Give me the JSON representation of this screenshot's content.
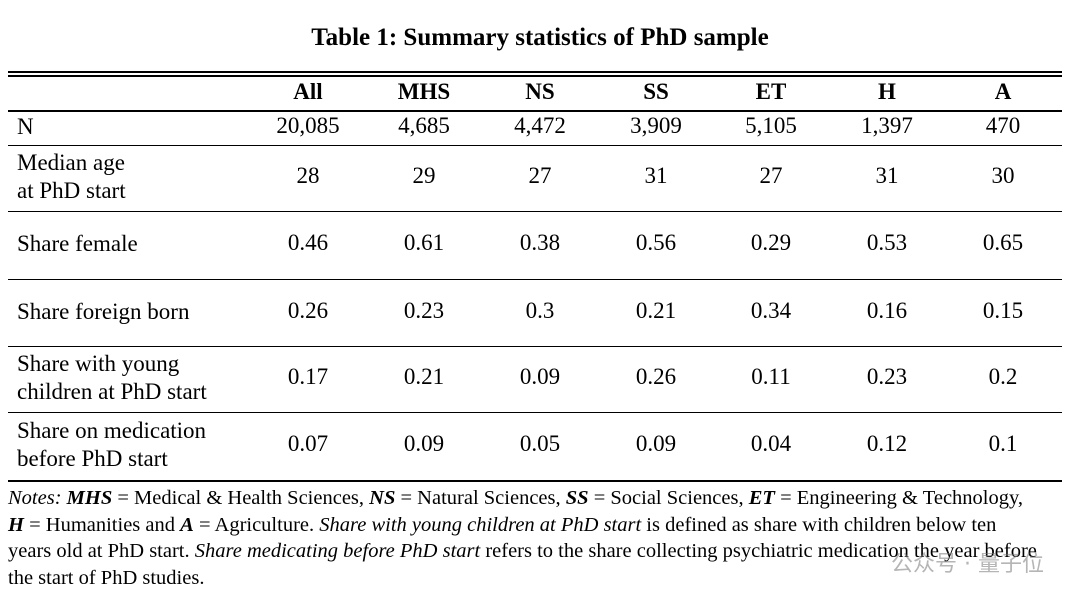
{
  "title": "Table 1: Summary statistics of PhD sample",
  "table": {
    "columns": [
      "All",
      "MHS",
      "NS",
      "SS",
      "ET",
      "H",
      "A"
    ],
    "rows": [
      {
        "label": [
          "N"
        ],
        "values": [
          "20,085",
          "4,685",
          "4,472",
          "3,909",
          "5,105",
          "1,397",
          "470"
        ]
      },
      {
        "label": [
          "Median age",
          "at PhD start"
        ],
        "values": [
          "28",
          "29",
          "27",
          "31",
          "27",
          "31",
          "30"
        ]
      },
      {
        "label": [
          "Share female"
        ],
        "values": [
          "0.46",
          "0.61",
          "0.38",
          "0.56",
          "0.29",
          "0.53",
          "0.65"
        ]
      },
      {
        "label": [
          "Share foreign born"
        ],
        "values": [
          "0.26",
          "0.23",
          "0.3",
          "0.21",
          "0.34",
          "0.16",
          "0.15"
        ]
      },
      {
        "label": [
          "Share with young",
          "children at PhD start"
        ],
        "values": [
          "0.17",
          "0.21",
          "0.09",
          "0.26",
          "0.11",
          "0.23",
          "0.2"
        ]
      },
      {
        "label": [
          "Share on medication",
          "before PhD start"
        ],
        "values": [
          "0.07",
          "0.09",
          "0.05",
          "0.09",
          "0.04",
          "0.12",
          "0.1"
        ]
      }
    ]
  },
  "notes": [
    {
      "text": "Notes: ",
      "style": "italic"
    },
    {
      "text": "MHS",
      "style": "bold-italic"
    },
    {
      "text": " = Medical & Health Sciences, ",
      "style": "normal"
    },
    {
      "text": "NS",
      "style": "bold-italic"
    },
    {
      "text": " = Natural Sciences, ",
      "style": "normal"
    },
    {
      "text": "SS",
      "style": "bold-italic"
    },
    {
      "text": " = Social Sciences, ",
      "style": "normal"
    },
    {
      "text": "ET",
      "style": "bold-italic"
    },
    {
      "text": " = Engineering & Technology, ",
      "style": "normal"
    },
    {
      "text": "H",
      "style": "bold-italic"
    },
    {
      "text": " = Humanities and ",
      "style": "normal"
    },
    {
      "text": "A",
      "style": "bold-italic"
    },
    {
      "text": " = Agriculture. ",
      "style": "normal"
    },
    {
      "text": "Share with young children at PhD start",
      "style": "italic"
    },
    {
      "text": " is defined as share with children below ten years old at PhD start. ",
      "style": "normal"
    },
    {
      "text": "Share medicating before PhD start",
      "style": "italic"
    },
    {
      "text": " refers to the share collecting psychiatric medication the year before the start of PhD studies.",
      "style": "normal"
    }
  ],
  "watermark": "公众号 · 量子位"
}
